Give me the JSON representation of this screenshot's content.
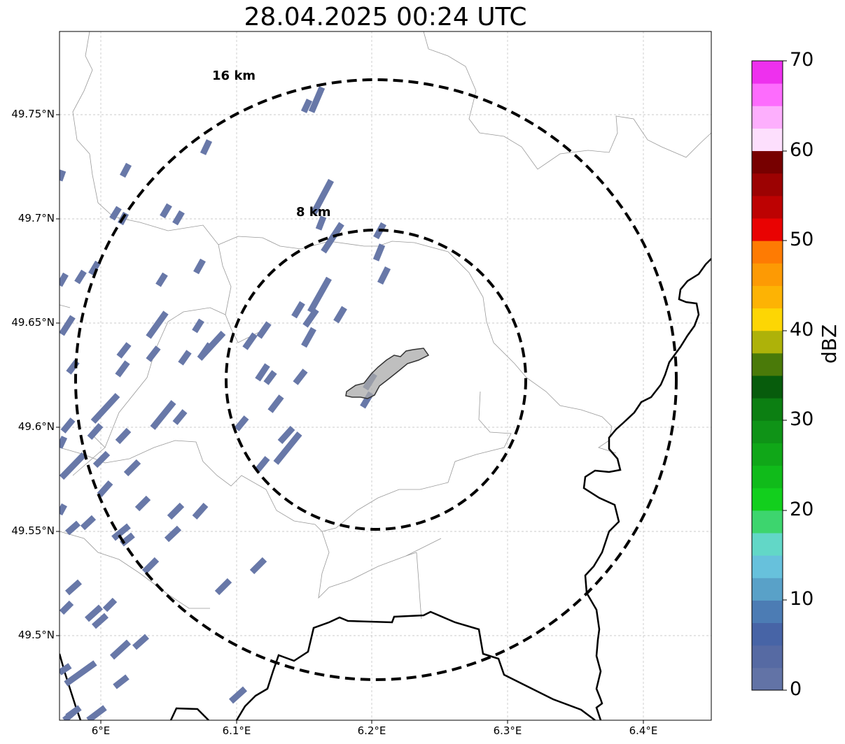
{
  "title": "28.04.2025 00:24 UTC",
  "axes": {
    "x_ticks": [
      "6°E",
      "6.1°E",
      "6.2°E",
      "6.3°E",
      "6.4°E"
    ],
    "y_ticks": [
      "49.75°N",
      "49.7°N",
      "49.65°N",
      "49.6°N",
      "49.55°N",
      "49.5°N"
    ]
  },
  "rings": [
    {
      "label": "16 km",
      "radius_km": 16
    },
    {
      "label": "8 km",
      "radius_km": 8
    }
  ],
  "colorbar": {
    "label": "dBZ",
    "ticks": [
      "0",
      "10",
      "20",
      "30",
      "40",
      "50",
      "60",
      "70"
    ],
    "colors": [
      "#6273a6",
      "#566aa3",
      "#4764a6",
      "#4c7cb4",
      "#59a1c8",
      "#67c1dc",
      "#62d7c7",
      "#3dd56e",
      "#12cf1d",
      "#10bb1a",
      "#10a718",
      "#0f9317",
      "#0c7f12",
      "#075c0c",
      "#4a7a09",
      "#aeb209",
      "#fdd604",
      "#fdb304",
      "#fd9a04",
      "#fe7b03",
      "#e90202",
      "#bd0202",
      "#9c0202",
      "#770000",
      "#fddffd",
      "#fdaffd",
      "#fd6cfd",
      "#ee30ee"
    ]
  },
  "echo_color": "#6878a8"
}
